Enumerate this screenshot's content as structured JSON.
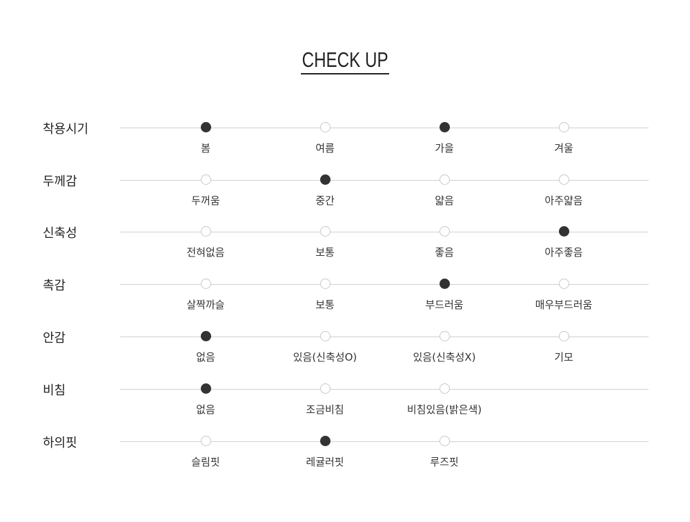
{
  "title": "CHECK UP",
  "colors": {
    "selected": "#333333",
    "unselected_border": "#c8c8c8",
    "line": "#d0d0d0"
  },
  "rows": [
    {
      "label": "착용시기",
      "options": [
        {
          "label": "봄",
          "selected": true
        },
        {
          "label": "여름",
          "selected": false
        },
        {
          "label": "가을",
          "selected": true
        },
        {
          "label": "겨울",
          "selected": false
        }
      ]
    },
    {
      "label": "두께감",
      "options": [
        {
          "label": "두꺼움",
          "selected": false
        },
        {
          "label": "중간",
          "selected": true
        },
        {
          "label": "얇음",
          "selected": false
        },
        {
          "label": "아주얇음",
          "selected": false
        }
      ]
    },
    {
      "label": "신축성",
      "options": [
        {
          "label": "전혀없음",
          "selected": false
        },
        {
          "label": "보통",
          "selected": false
        },
        {
          "label": "좋음",
          "selected": false
        },
        {
          "label": "아주좋음",
          "selected": true
        }
      ]
    },
    {
      "label": "촉감",
      "options": [
        {
          "label": "살짝까슬",
          "selected": false
        },
        {
          "label": "보통",
          "selected": false
        },
        {
          "label": "부드러움",
          "selected": true
        },
        {
          "label": "매우부드러움",
          "selected": false
        }
      ]
    },
    {
      "label": "안감",
      "options": [
        {
          "label": "없음",
          "selected": true
        },
        {
          "label": "있음(신축성O)",
          "selected": false
        },
        {
          "label": "있음(신축성X)",
          "selected": false
        },
        {
          "label": "기모",
          "selected": false
        }
      ]
    },
    {
      "label": "비침",
      "options": [
        {
          "label": "없음",
          "selected": true
        },
        {
          "label": "조금비침",
          "selected": false
        },
        {
          "label": "비침있음(밝은색)",
          "selected": false
        }
      ]
    },
    {
      "label": "하의핏",
      "options": [
        {
          "label": "슬림핏",
          "selected": false
        },
        {
          "label": "레귤러핏",
          "selected": true
        },
        {
          "label": "루즈핏",
          "selected": false
        }
      ]
    }
  ]
}
